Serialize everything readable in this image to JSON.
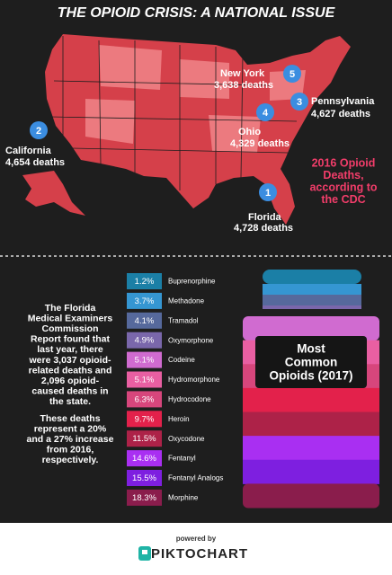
{
  "title": "THE OPIOID CRISIS: A NATIONAL ISSUE",
  "map_labels": [
    {
      "number": "1",
      "state": "Florida",
      "deaths": "4,728 deaths"
    },
    {
      "number": "2",
      "state": "California",
      "deaths": "4,654 deaths"
    },
    {
      "number": "3",
      "state": "Pennsylvania",
      "deaths": "4,627 deaths"
    },
    {
      "number": "4",
      "state": "Ohio",
      "deaths": "4,329 deaths"
    },
    {
      "number": "5",
      "state": "New York",
      "deaths": "3,638 deaths"
    }
  ],
  "map_caption": [
    "2016 Opioid",
    "Deaths,",
    "according to",
    "the CDC"
  ],
  "report_text": [
    "The Florida",
    "Medical Examiners",
    "Commission",
    "Report found that",
    "last year, there",
    "were 3,037 opioid-",
    "related deaths and",
    "2,096 opioid-",
    "caused deaths in",
    "the state."
  ],
  "increase_text": [
    "These deaths",
    "represent a 20%",
    "and a 27% increase",
    "from 2016,",
    "respectively."
  ],
  "opioids": [
    {
      "percent": "1.2%",
      "name": "Buprenorphine",
      "color": "#1b7fa6"
    },
    {
      "percent": "3.7%",
      "name": "Methadone",
      "color": "#3596d2"
    },
    {
      "percent": "4.1%",
      "name": "Tramadol",
      "color": "#56699c"
    },
    {
      "percent": "4.9%",
      "name": "Oxymorphone",
      "color": "#7a67ab"
    },
    {
      "percent": "5.1%",
      "name": "Codeine",
      "color": "#d06bd0"
    },
    {
      "percent": "5.1%",
      "name": "Hydromorphone",
      "color": "#e95fa2"
    },
    {
      "percent": "6.3%",
      "name": "Hydrocodone",
      "color": "#d7467c"
    },
    {
      "percent": "9.7%",
      "name": "Heroin",
      "color": "#e3214b"
    },
    {
      "percent": "11.5%",
      "name": "Oxycodone",
      "color": "#ad2248"
    },
    {
      "percent": "14.6%",
      "name": "Fentanyl",
      "color": "#a92ff2"
    },
    {
      "percent": "15.5%",
      "name": "Fentanyl Analogs",
      "color": "#7e1fe0"
    },
    {
      "percent": "18.3%",
      "name": "Morphine",
      "color": "#8a1d4c"
    }
  ],
  "bottle_label": [
    "Most",
    "Common",
    "Opioids (2017)"
  ],
  "footer": {
    "powered_by": "powered by",
    "brand": "PIKTOCHART"
  }
}
